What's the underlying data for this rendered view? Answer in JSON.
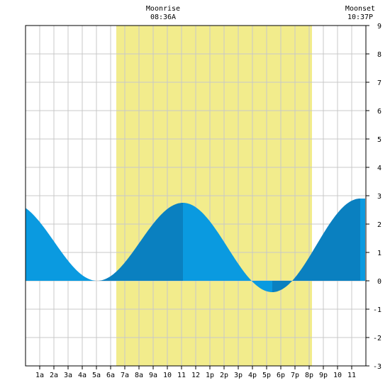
{
  "moonrise": {
    "label": "Moonrise",
    "time": "08:36A"
  },
  "moonset": {
    "label": "Moonset",
    "time": "10:37P"
  },
  "colors": {
    "daylight": "#f2ec8c",
    "tide_light": "#0a9ae0",
    "tide_dark": "#0a80c0",
    "grid": "#c8c8c8",
    "axis": "#000000"
  },
  "chart_data": {
    "type": "area",
    "title": "",
    "xlabel": "",
    "ylabel": "",
    "x_unit": "hour of day",
    "xlim": [
      0,
      24
    ],
    "ylim": [
      -3,
      9
    ],
    "grid": true,
    "daylight_hours": [
      6.4,
      20.2
    ],
    "moonrise_hour": 8.6,
    "moonset_hour": 22.62,
    "x_tick_labels": [
      "1a",
      "2a",
      "3a",
      "4a",
      "5a",
      "6a",
      "7a",
      "8a",
      "9a",
      "10",
      "11",
      "12",
      "1p",
      "2p",
      "3p",
      "4p",
      "5p",
      "6p",
      "7p",
      "8p",
      "9p",
      "10",
      "11"
    ],
    "y_tick_labels": [
      "-3",
      "-2",
      "-1",
      "0",
      "1",
      "2",
      "3",
      "4",
      "5",
      "6",
      "7",
      "8",
      "9"
    ],
    "tide_extremes": [
      {
        "type": "low",
        "hour": 5.05,
        "height": 0.0
      },
      {
        "type": "high",
        "hour": 11.1,
        "height": 2.75
      },
      {
        "type": "low",
        "hour": 17.4,
        "height": -0.4
      },
      {
        "type": "high",
        "hour": 23.6,
        "height": 2.9
      }
    ],
    "series": [
      {
        "x": [
          0,
          1,
          2,
          3,
          4,
          5,
          6,
          7,
          8,
          9,
          10,
          11,
          12,
          13,
          14,
          15,
          16,
          17,
          18,
          19,
          20,
          21,
          22,
          23,
          24
        ],
        "values": [
          2.73,
          2.11,
          1.35,
          0.63,
          0.15,
          0.0,
          0.22,
          0.77,
          1.48,
          2.14,
          2.59,
          2.75,
          2.47,
          1.85,
          1.05,
          0.27,
          -0.25,
          -0.38,
          -0.1,
          0.5,
          1.26,
          2.0,
          2.55,
          2.85,
          2.9
        ]
      }
    ]
  }
}
